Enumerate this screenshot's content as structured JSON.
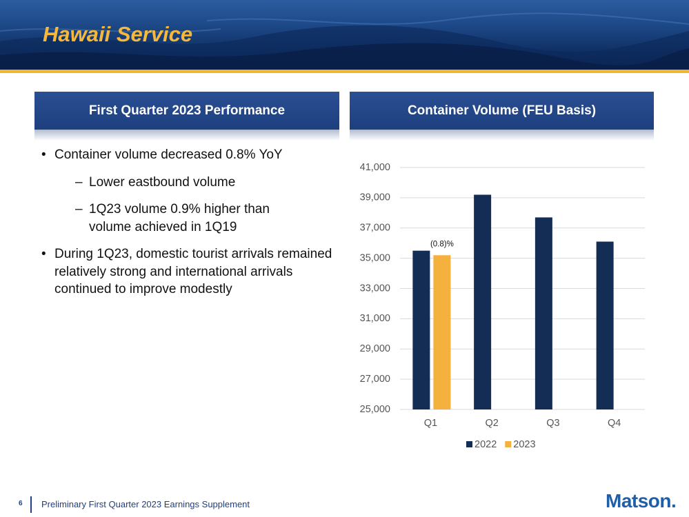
{
  "header": {
    "title": "Hawaii Service"
  },
  "left_panel": {
    "heading": "First Quarter 2023 Performance",
    "bullets": [
      {
        "text": "Container volume decreased 0.8% YoY",
        "sub": [
          "Lower eastbound volume",
          "1Q23 volume 0.9% higher than volume achieved in 1Q19"
        ]
      },
      {
        "text": "During 1Q23, domestic tourist arrivals remained relatively strong and international arrivals continued to improve modestly",
        "sub": []
      }
    ]
  },
  "right_panel": {
    "heading": "Container Volume (FEU Basis)"
  },
  "chart_data": {
    "type": "bar",
    "categories": [
      "Q1",
      "Q2",
      "Q3",
      "Q4"
    ],
    "series": [
      {
        "name": "2022",
        "color": "#132d55",
        "values": [
          35500,
          39200,
          37700,
          36100
        ]
      },
      {
        "name": "2023",
        "color": "#f5b13d",
        "values": [
          35200,
          null,
          null,
          null
        ]
      }
    ],
    "annotation": "(0.8)%",
    "ylim": [
      25000,
      41000
    ],
    "yticks": [
      {
        "value": 25000,
        "label": "25,000"
      },
      {
        "value": 27000,
        "label": "27,000"
      },
      {
        "value": 29000,
        "label": "29,000"
      },
      {
        "value": 31000,
        "label": "31,000"
      },
      {
        "value": 33000,
        "label": "33,000"
      },
      {
        "value": 35000,
        "label": "35,000"
      },
      {
        "value": 37000,
        "label": "37,000"
      },
      {
        "value": 39000,
        "label": "39,000"
      },
      {
        "value": 41000,
        "label": "41,000"
      }
    ],
    "grid": true,
    "legend": "bottom"
  },
  "footer": {
    "page": "6",
    "text": "Preliminary First Quarter 2023 Earnings Supplement",
    "logo": "Matson."
  }
}
